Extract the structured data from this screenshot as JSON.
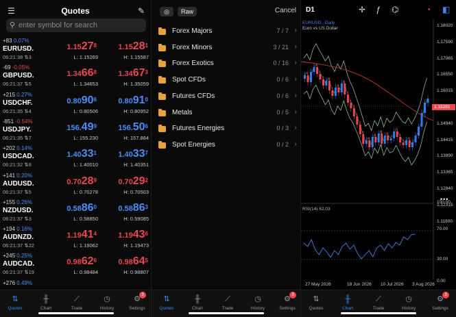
{
  "quotes_panel": {
    "title": "Quotes",
    "search_placeholder": "enter symbol for search",
    "rows": [
      {
        "change": "+83",
        "pct": "0.07%",
        "dir": "up",
        "symbol": "EURUSD.",
        "time": "06:21:38",
        "count": "3",
        "bid_pre": "1.15",
        "bid_big": "27",
        "bid_sup": "8",
        "bid_dir": "dn",
        "ask_pre": "1.15",
        "ask_big": "28",
        "ask_sup": "1",
        "ask_dir": "dn",
        "low": "L: 1.15269",
        "high": "H: 1.15587"
      },
      {
        "change": "-69",
        "pct": "-0.05%",
        "dir": "dn",
        "symbol": "GBPUSD.",
        "time": "06:21:37",
        "count": "5",
        "bid_pre": "1.34",
        "bid_big": "66",
        "bid_sup": "8",
        "bid_dir": "dn",
        "ask_pre": "1.34",
        "ask_big": "67",
        "ask_sup": "3",
        "ask_dir": "dn",
        "low": "L: 1.34653",
        "high": "H: 1.35059"
      },
      {
        "change": "+215",
        "pct": "0.27%",
        "dir": "up",
        "symbol": "USDCHF.",
        "time": "06:21:35",
        "count": "4",
        "bid_pre": "0.80",
        "bid_big": "90",
        "bid_sup": "6",
        "bid_dir": "up",
        "ask_pre": "0.80",
        "ask_big": "91",
        "ask_sup": "0",
        "ask_dir": "up",
        "low": "L: 0.80506",
        "high": "H: 0.80952"
      },
      {
        "change": "-851",
        "pct": "-0.54%",
        "dir": "dn",
        "symbol": "USDJPY.",
        "time": "06:21:35",
        "count": "7",
        "bid_pre": "156.",
        "bid_big": "49",
        "bid_sup": "9",
        "bid_dir": "up",
        "ask_pre": "156.",
        "ask_big": "50",
        "ask_sup": "6",
        "ask_dir": "up",
        "low": "L: 155.230",
        "high": "H: 157.884"
      },
      {
        "change": "+202",
        "pct": "0.14%",
        "dir": "up",
        "symbol": "USDCAD.",
        "time": "06:21:32",
        "count": "6",
        "bid_pre": "1.40",
        "bid_big": "33",
        "bid_sup": "1",
        "bid_dir": "up",
        "ask_pre": "1.40",
        "ask_big": "33",
        "ask_sup": "7",
        "ask_dir": "up",
        "low": "L: 1.40010",
        "high": "H: 1.40351"
      },
      {
        "change": "+141",
        "pct": "0.20%",
        "dir": "up",
        "symbol": "AUDUSD.",
        "time": "06:21:37",
        "count": "5",
        "bid_pre": "0.70",
        "bid_big": "28",
        "bid_sup": "9",
        "bid_dir": "dn",
        "ask_pre": "0.70",
        "ask_big": "29",
        "ask_sup": "2",
        "ask_dir": "dn",
        "low": "L: 0.70278",
        "high": "H: 0.70503"
      },
      {
        "change": "+155",
        "pct": "0.26%",
        "dir": "up",
        "symbol": "NZDUSD.",
        "time": "06:21:37",
        "count": "3",
        "bid_pre": "0.58",
        "bid_big": "86",
        "bid_sup": "0",
        "bid_dir": "up",
        "ask_pre": "0.58",
        "ask_big": "86",
        "ask_sup": "3",
        "ask_dir": "up",
        "low": "L: 0.58850",
        "high": "H: 0.59085"
      },
      {
        "change": "+194",
        "pct": "0.16%",
        "dir": "up",
        "symbol": "AUDNZD.",
        "time": "06:21:37",
        "count": "22",
        "bid_pre": "1.19",
        "bid_big": "41",
        "bid_sup": "4",
        "bid_dir": "dn",
        "ask_pre": "1.19",
        "ask_big": "43",
        "ask_sup": "6",
        "ask_dir": "dn",
        "low": "L: 1.19062",
        "high": "H: 1.19473"
      },
      {
        "change": "+245",
        "pct": "0.25%",
        "dir": "up",
        "symbol": "AUDCAD.",
        "time": "06:21:37",
        "count": "19",
        "bid_pre": "0.98",
        "bid_big": "62",
        "bid_sup": "6",
        "bid_dir": "dn",
        "ask_pre": "0.98",
        "ask_big": "64",
        "ask_sup": "5",
        "ask_dir": "dn",
        "low": "L: 0.98484",
        "high": "H: 0.98807"
      }
    ],
    "partial_row": {
      "change": "+276",
      "pct": "0.49%"
    }
  },
  "tabs": [
    {
      "label": "Quotes",
      "icon": "quotes-arrows-icon"
    },
    {
      "label": "Chart",
      "icon": "candle-icon"
    },
    {
      "label": "Trade",
      "icon": "trade-chart-icon"
    },
    {
      "label": "History",
      "icon": "clock-icon"
    },
    {
      "label": "Settings",
      "icon": "gear-icon",
      "badge": "3"
    }
  ],
  "symbols_panel": {
    "mode_label": "Raw",
    "cancel_label": "Cancel",
    "groups": [
      {
        "name": "Forex Majors",
        "count": "7 / 7"
      },
      {
        "name": "Forex Minors",
        "count": "3 / 21"
      },
      {
        "name": "Forex Exotics",
        "count": "0 / 16"
      },
      {
        "name": "Spot CFDs",
        "count": "0 / 6"
      },
      {
        "name": "Futures CFDs",
        "count": "0 / 6"
      },
      {
        "name": "Metals",
        "count": "0 / 5"
      },
      {
        "name": "Futures Energies",
        "count": "0 / 3"
      },
      {
        "name": "Spot Energies",
        "count": "0 / 2"
      }
    ]
  },
  "chart_panel": {
    "timeframe": "D1",
    "symbol_line": "EURUSD., Daily",
    "description": "Euro vs US Dollar",
    "rsi_label": "RSI(14) 62.03",
    "current_price": "1.15281",
    "colors": {
      "bull": "#2f7ef0",
      "bear": "#e8484f",
      "band": "#8fb8a0",
      "ma": "#c0392b",
      "rsi": "#4a7fe0"
    }
  },
  "chart_data": {
    "type": "line",
    "title": "EURUSD., Daily",
    "price_axis": [
      "1.18020",
      "1.17590",
      "1.17065",
      "1.16550",
      "1.16015",
      "1.15465",
      "1.14940",
      "1.14415",
      "1.13890",
      "1.13365",
      "1.12840",
      "1.12315",
      "1.11800"
    ],
    "rsi_axis": [
      "100.00",
      "70.00",
      "30.00",
      "0.00"
    ],
    "x_labels": [
      "27 May 2026",
      "18 Jun 2026",
      "10 Jul 2026",
      "3 Aug 2026"
    ],
    "rsi_value": 62.03,
    "rsi_levels": [
      70,
      30
    ]
  }
}
